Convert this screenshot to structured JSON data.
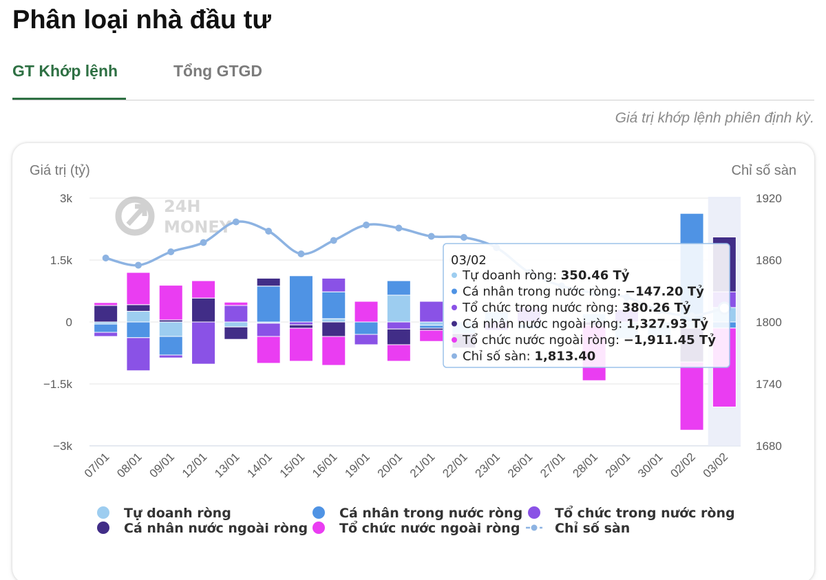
{
  "page": {
    "title": "Phân loại nhà đầu tư",
    "tabs": [
      {
        "label": "GT Khớp lệnh",
        "active": true
      },
      {
        "label": "Tổng GTGD",
        "active": false
      }
    ],
    "note": "Giá trị khớp lệnh phiên định kỳ."
  },
  "chart_data": {
    "type": "bar",
    "stacked": true,
    "watermark": [
      "24H",
      "MONEY"
    ],
    "ylabel_left": "Giá trị (tỷ)",
    "ylabel_right": "Chỉ số sàn",
    "ylim": [
      -3000,
      3000
    ],
    "yticks_left": [
      {
        "value": 3000,
        "label": "3k"
      },
      {
        "value": 1500,
        "label": "1.5k"
      },
      {
        "value": 0,
        "label": "0"
      },
      {
        "value": -1500,
        "label": "−1.5k"
      },
      {
        "value": -3000,
        "label": "−3k"
      }
    ],
    "ylim_right": [
      1680,
      1920
    ],
    "yticks_right": [
      {
        "value": 1920,
        "label": "1920"
      },
      {
        "value": 1860,
        "label": "1860"
      },
      {
        "value": 1800,
        "label": "1800"
      },
      {
        "value": 1740,
        "label": "1740"
      },
      {
        "value": 1680,
        "label": "1680"
      }
    ],
    "categories": [
      "07/01",
      "08/01",
      "09/01",
      "12/01",
      "13/01",
      "14/01",
      "15/01",
      "16/01",
      "19/01",
      "20/01",
      "21/01",
      "22/01",
      "23/01",
      "26/01",
      "27/01",
      "28/01",
      "29/01",
      "30/01",
      "02/02",
      "03/02"
    ],
    "series": [
      {
        "name": "Tự doanh ròng",
        "color": "#9dcdf0",
        "values": [
          -50,
          260,
          -350,
          0,
          -120,
          -30,
          0,
          80,
          0,
          650,
          -80,
          -280,
          250,
          -60,
          -50,
          200,
          -400,
          -350,
          -150,
          350.46
        ]
      },
      {
        "name": "Cá nhân trong nước ròng",
        "color": "#4f93e4",
        "values": [
          -200,
          -380,
          -450,
          0,
          0,
          870,
          1120,
          650,
          -300,
          350,
          -70,
          0,
          0,
          -100,
          0,
          0,
          0,
          0,
          2630,
          -147.2
        ]
      },
      {
        "name": "Tổ chức trong nước ròng",
        "color": "#8a52e6",
        "values": [
          -100,
          -800,
          -70,
          -1020,
          400,
          -320,
          -70,
          330,
          -250,
          -170,
          500,
          0,
          -200,
          350,
          0,
          0,
          300,
          0,
          0,
          380.26
        ]
      },
      {
        "name": "Cá nhân nước ngoài ròng",
        "color": "#412d87",
        "values": [
          400,
          160,
          50,
          580,
          -300,
          190,
          -80,
          -350,
          0,
          -380,
          -50,
          -350,
          0,
          0,
          0,
          -80,
          0,
          0,
          -820,
          1327.93
        ]
      },
      {
        "name": "Tổ chức nước ngoài ròng",
        "color": "#ea3df2",
        "values": [
          70,
          780,
          840,
          420,
          80,
          -650,
          -800,
          -700,
          500,
          -400,
          -270,
          0,
          0,
          0,
          0,
          -1340,
          0,
          0,
          -1650,
          -1911.45
        ]
      }
    ],
    "line_series": {
      "name": "Chỉ số sàn",
      "color": "#8db3e2",
      "values": [
        1862,
        1855,
        1868,
        1877,
        1897,
        1888,
        1866,
        1879,
        1894,
        1891,
        1883,
        1882,
        1872,
        1848,
        1835,
        1828,
        1824,
        1811,
        1806,
        1813.4
      ]
    },
    "highlight_index": 19,
    "tooltip": {
      "date": "03/02",
      "rows": [
        {
          "label": "Tự doanh ròng: ",
          "value": "350.46 Tỷ",
          "color": "#9dcdf0"
        },
        {
          "label": "Cá nhân trong nước ròng: ",
          "value": "−147.20 Tỷ",
          "color": "#4f93e4"
        },
        {
          "label": "Tổ chức trong nước ròng: ",
          "value": "380.26 Tỷ",
          "color": "#8a52e6"
        },
        {
          "label": "Cá nhân nước ngoài ròng: ",
          "value": "1,327.93 Tỷ",
          "color": "#412d87"
        },
        {
          "label": "Tổ chức nước ngoài ròng: ",
          "value": "−1,911.45 Tỷ",
          "color": "#ea3df2"
        },
        {
          "label": "Chỉ số sàn: ",
          "value": "1,813.40",
          "color": "#8db3e2"
        }
      ]
    },
    "legend": [
      {
        "label": "Tự doanh ròng",
        "color": "#9dcdf0",
        "kind": "dot"
      },
      {
        "label": "Cá nhân trong nước ròng",
        "color": "#4f93e4",
        "kind": "dot"
      },
      {
        "label": "Tổ chức trong nước ròng",
        "color": "#8a52e6",
        "kind": "dot"
      },
      {
        "label": "Cá nhân nước ngoài ròng",
        "color": "#412d87",
        "kind": "dot"
      },
      {
        "label": "Tổ chức nước ngoài ròng",
        "color": "#ea3df2",
        "kind": "dot"
      },
      {
        "label": "Chỉ số sàn",
        "color": "#8db3e2",
        "kind": "line"
      }
    ]
  }
}
